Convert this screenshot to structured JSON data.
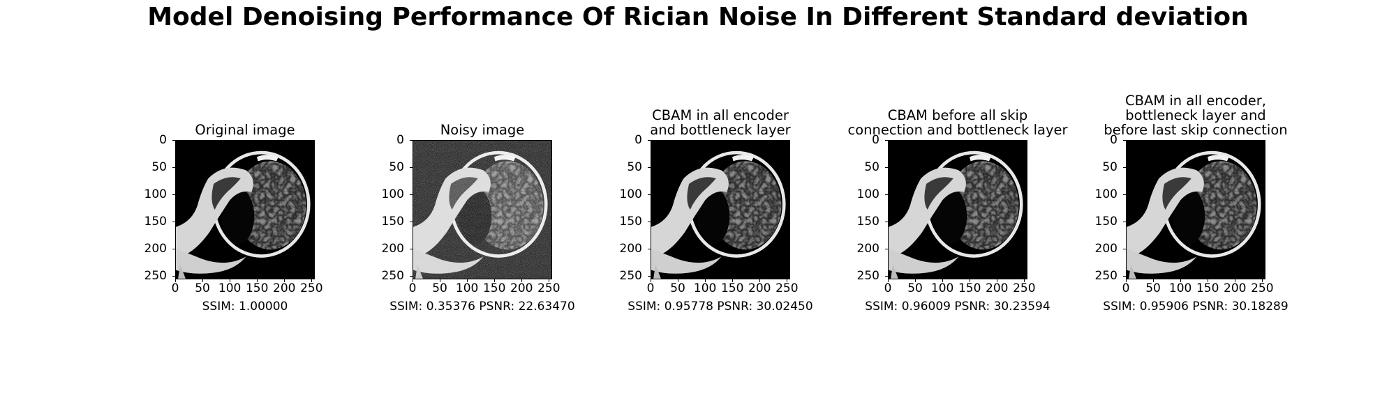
{
  "figure": {
    "title": "Model Denoising Performance Of Rician Noise In Different Standard deviation"
  },
  "axis_ticks": {
    "x": [
      "0",
      "50",
      "100",
      "150",
      "200",
      "250"
    ],
    "y": [
      "0",
      "50",
      "100",
      "150",
      "200",
      "250"
    ]
  },
  "panels": [
    {
      "title_lines": [
        "Original image"
      ],
      "metric": "SSIM: 1.00000",
      "noisy": false
    },
    {
      "title_lines": [
        "Noisy image"
      ],
      "metric": "SSIM: 0.35376 PSNR: 22.63470",
      "noisy": true
    },
    {
      "title_lines": [
        "CBAM in all encoder",
        "and bottleneck layer"
      ],
      "metric": "SSIM: 0.95778 PSNR: 30.02450",
      "noisy": false
    },
    {
      "title_lines": [
        "CBAM before all skip",
        "connection and bottleneck layer"
      ],
      "metric": "SSIM: 0.96009 PSNR: 30.23594",
      "noisy": false
    },
    {
      "title_lines": [
        "CBAM in all encoder,",
        "bottleneck layer and",
        "before last skip connection"
      ],
      "metric": "SSIM: 0.95906 PSNR: 30.18289",
      "noisy": false
    }
  ]
}
